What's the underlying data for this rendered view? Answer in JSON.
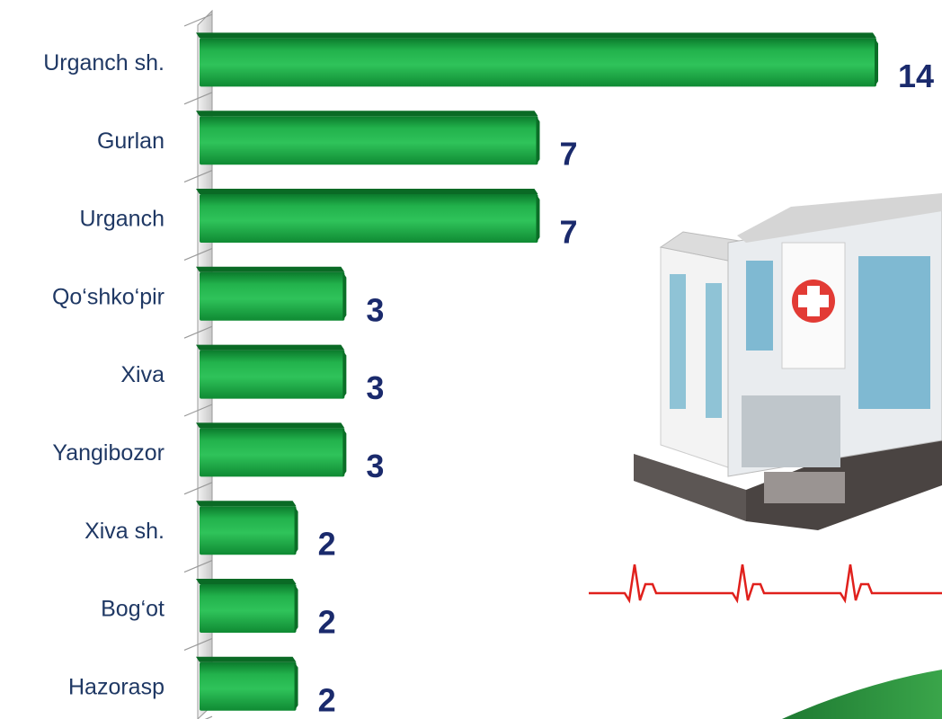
{
  "chart_data": {
    "type": "bar",
    "orientation": "horizontal",
    "categories": [
      "Urganch sh.",
      "Gurlan",
      "Urganch",
      "Qo‘shko‘pir",
      "Xiva",
      "Yangibozor",
      "Xiva sh.",
      "Bog‘ot",
      "Hazorasp"
    ],
    "values": [
      14,
      7,
      7,
      3,
      3,
      3,
      2,
      2,
      2
    ],
    "color": "#1fae4b"
  }
}
